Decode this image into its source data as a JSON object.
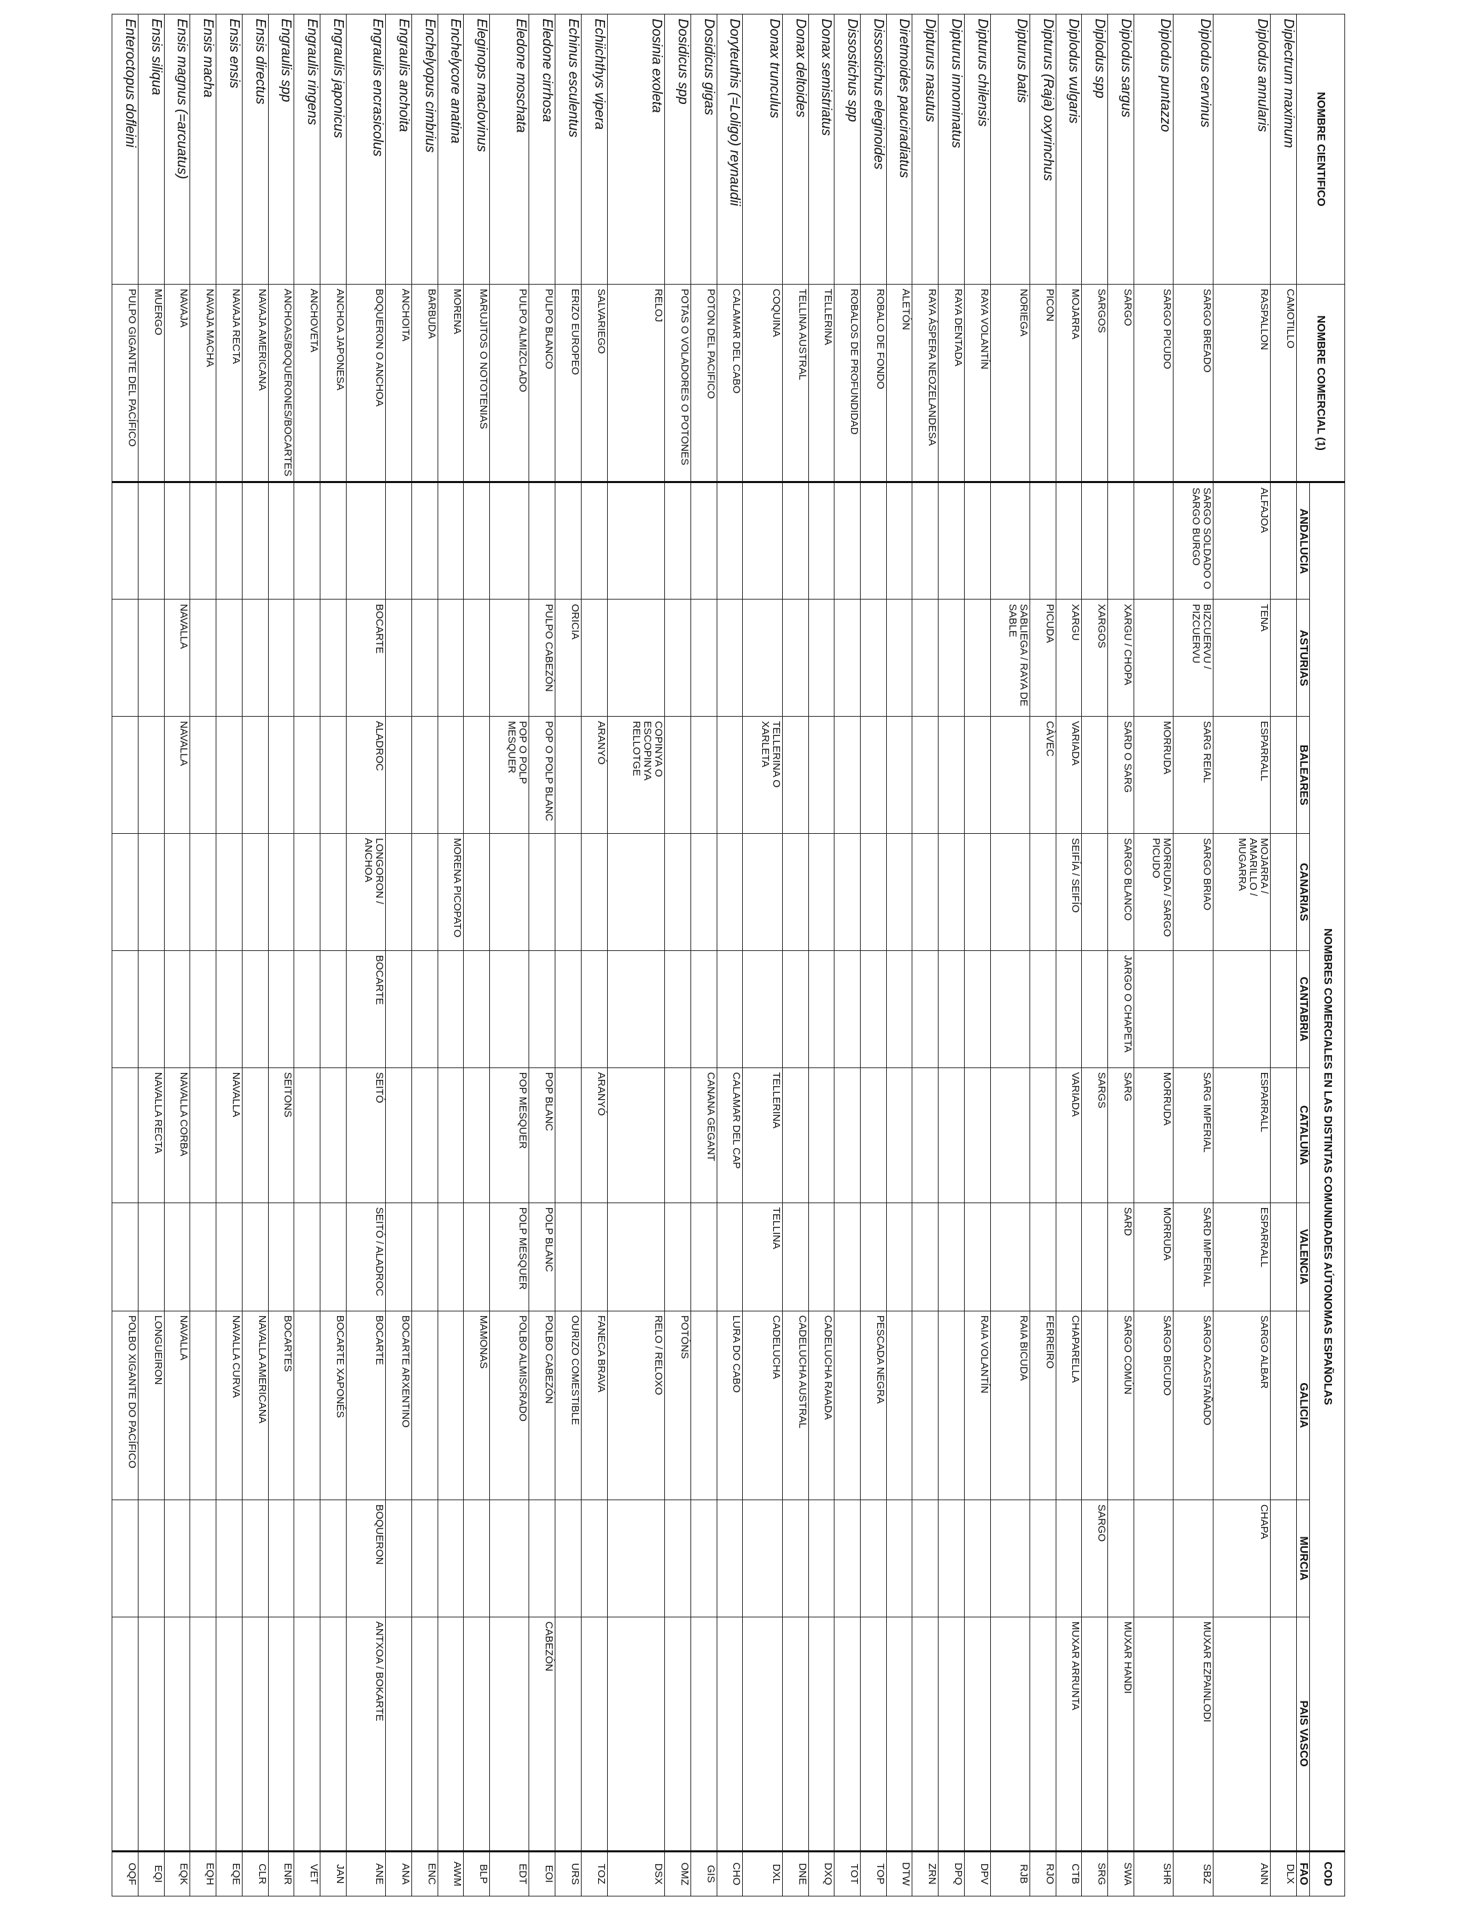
{
  "header": {
    "title": "NOMBRES COMERCIALES EN LAS DISTINTAS COMUNIDADES AÚTONOMAS ESPAÑOLAS",
    "cod": "COD",
    "columns": [
      "NOMBRE CIENTIFICO",
      "NOMBRE COMERCIAL (1)",
      "ANDALUCIA",
      "ASTURIAS",
      "BALEARES",
      "CANARIAS",
      "CANTABRIA",
      "CATALUÑA",
      "VALENCIA",
      "GALICIA",
      "MURCIA",
      "PAIS VASCO",
      "FAO"
    ]
  },
  "rows": [
    {
      "sci": "Diplectrum maximum",
      "com": "CAMOTILLO",
      "and": "",
      "ast": "",
      "bal": "",
      "can": "",
      "cnt": "",
      "cat": "",
      "val": "",
      "gal": "",
      "mur": "",
      "pv": "",
      "fao": "DLX"
    },
    {
      "sci": "Diplodus annularis",
      "com": "RASPALLON",
      "and": "ALFAJOA",
      "ast": "TENA",
      "bal": "ESPARRALL",
      "can": "MOJARRA / AMARILLO / MUGARRA",
      "cnt": "",
      "cat": "ESPARRALL",
      "val": "ESPARRALL",
      "gal": "SARGO ALBAR",
      "mur": "CHAPA",
      "pv": "",
      "fao": "ANN"
    },
    {
      "sci": "Diplodus cervinus",
      "com": "SARGO BREADO",
      "and": "SARGO SOLDADO O SARGO BURGO",
      "ast": "BIZCUERVU / PIZCUERVU",
      "bal": "SARG REIAL",
      "can": "SARGO BRIAO",
      "cnt": "",
      "cat": "SARG IMPERIAL",
      "val": "SARD IMPERIAL",
      "gal": "SARGO ACASTAÑADO",
      "mur": "",
      "pv": "MUXAR EZPAINLODI",
      "fao": "SBZ"
    },
    {
      "sci": "Diplodus puntazzo",
      "com": "SARGO PICUDO",
      "and": "",
      "ast": "",
      "bal": "MORRUDA",
      "can": "MORRUDA / SARGO PICUDO",
      "cnt": "",
      "cat": "MORRUDA",
      "val": "MORRUDA",
      "gal": "SARGO BICUDO",
      "mur": "",
      "pv": "",
      "fao": "SHR"
    },
    {
      "sci": "Diplodus sargus",
      "com": "SARGO",
      "and": "",
      "ast": "XARGU / CHOPA",
      "bal": "SARD O SARG",
      "can": "SARGO BLANCO",
      "cnt": "JARGO O CHAPETA",
      "cat": "SARG",
      "val": "SARD",
      "gal": "SARGO COMÚN",
      "mur": "",
      "pv": "MUXAR HANDI",
      "fao": "SWA"
    },
    {
      "sci": "Diplodus spp",
      "com": "SARGOS",
      "and": "",
      "ast": "XARGOS",
      "bal": "",
      "can": "",
      "cnt": "",
      "cat": "SARGS",
      "val": "",
      "gal": "",
      "mur": "SARGO",
      "pv": "",
      "fao": "SRG"
    },
    {
      "sci": "Diplodus vulgaris",
      "com": "MOJARRA",
      "and": "",
      "ast": "XARGU",
      "bal": "VARIADA",
      "can": "SEIFÍA / SEIFÍO",
      "cnt": "",
      "cat": "VARIADA",
      "val": "",
      "gal": "CHAPARELLA",
      "mur": "",
      "pv": "MUXAR ARRUNTA",
      "fao": "CTB"
    },
    {
      "sci": "Dipturus (Raja) oxyrinchus",
      "com": "PICON",
      "and": "",
      "ast": "PICUDA",
      "bal": "CÀVEC",
      "can": "",
      "cnt": "",
      "cat": "",
      "val": "",
      "gal": "FERREIRO",
      "mur": "",
      "pv": "",
      "fao": "RJO"
    },
    {
      "sci": "Dipturus batis",
      "com": "NORIEGA",
      "and": "",
      "ast": "SABLIEGA / RAYA DE SABLE",
      "bal": "",
      "can": "",
      "cnt": "",
      "cat": "",
      "val": "",
      "gal": "RAIA BICUDA",
      "mur": "",
      "pv": "",
      "fao": "RJB"
    },
    {
      "sci": "Dipturus chilensis",
      "com": "RAYA VOLANTÍN",
      "and": "",
      "ast": "",
      "bal": "",
      "can": "",
      "cnt": "",
      "cat": "",
      "val": "",
      "gal": "RAIA VOLANTÍN",
      "mur": "",
      "pv": "",
      "fao": "DPV"
    },
    {
      "sci": "Dipturus innominatus",
      "com": "RAYA DENTADA",
      "and": "",
      "ast": "",
      "bal": "",
      "can": "",
      "cnt": "",
      "cat": "",
      "val": "",
      "gal": "",
      "mur": "",
      "pv": "",
      "fao": "DPQ"
    },
    {
      "sci": "Dipturus nasutus",
      "com": "RAYA ÁSPERA NEOZELANDESA",
      "and": "",
      "ast": "",
      "bal": "",
      "can": "",
      "cnt": "",
      "cat": "",
      "val": "",
      "gal": "",
      "mur": "",
      "pv": "",
      "fao": "ZRN"
    },
    {
      "sci": "Diretmoides pauciradiatus",
      "com": "ALETÓN",
      "and": "",
      "ast": "",
      "bal": "",
      "can": "",
      "cnt": "",
      "cat": "",
      "val": "",
      "gal": "",
      "mur": "",
      "pv": "",
      "fao": "DTW"
    },
    {
      "sci": "Dissostichus eleginoides",
      "com": "ROBALO DE FONDO",
      "and": "",
      "ast": "",
      "bal": "",
      "can": "",
      "cnt": "",
      "cat": "",
      "val": "",
      "gal": "PESCADA NEGRA",
      "mur": "",
      "pv": "",
      "fao": "TOP"
    },
    {
      "sci": "Dissostichus spp",
      "com": "ROBALOS DE PROFUNDIDAD",
      "and": "",
      "ast": "",
      "bal": "",
      "can": "",
      "cnt": "",
      "cat": "",
      "val": "",
      "gal": "",
      "mur": "",
      "pv": "",
      "fao": "TOT"
    },
    {
      "sci": "Donax semistriatus",
      "com": "TELLERINA",
      "and": "",
      "ast": "",
      "bal": "",
      "can": "",
      "cnt": "",
      "cat": "",
      "val": "",
      "gal": "CADELUCHA RAIADA",
      "mur": "",
      "pv": "",
      "fao": "DXQ"
    },
    {
      "sci": "Donax deltoides",
      "com": "TELLINA AUSTRAL",
      "and": "",
      "ast": "",
      "bal": "",
      "can": "",
      "cnt": "",
      "cat": "",
      "val": "",
      "gal": "CADELUCHA AUSTRAL",
      "mur": "",
      "pv": "",
      "fao": "DNE"
    },
    {
      "sci": "Donax trunculus",
      "com": "COQUINA",
      "and": "",
      "ast": "",
      "bal": "TELLERINA O XARLETA",
      "can": "",
      "cnt": "",
      "cat": "TELLERINA",
      "val": "TELLINA",
      "gal": "CADELUCHA",
      "mur": "",
      "pv": "",
      "fao": "DXL"
    },
    {
      "sci": "Doryteuthis (=Loligo) reynaudii",
      "com": "CALAMAR DEL CABO",
      "and": "",
      "ast": "",
      "bal": "",
      "can": "",
      "cnt": "",
      "cat": "CALAMAR DEL CAP",
      "val": "",
      "gal": "LURA DO CABO",
      "mur": "",
      "pv": "",
      "fao": "CHO"
    },
    {
      "sci": "Dosidicus gigas",
      "com": "POTON DEL PACIFICO",
      "and": "",
      "ast": "",
      "bal": "",
      "can": "",
      "cnt": "",
      "cat": "CANANA GEGANT",
      "val": "",
      "gal": "",
      "mur": "",
      "pv": "",
      "fao": "GIS"
    },
    {
      "sci": "Dosidicus spp",
      "com": "POTAS O VOLADORES O POTONES",
      "and": "",
      "ast": "",
      "bal": "",
      "can": "",
      "cnt": "",
      "cat": "",
      "val": "",
      "gal": "POTÓNS",
      "mur": "",
      "pv": "",
      "fao": "OMZ"
    },
    {
      "sci": "Dosinia exoleta",
      "com": "RELOJ",
      "and": "",
      "ast": "",
      "bal": "COPINYA O ESCOPINYA RELLOTGE",
      "can": "",
      "cnt": "",
      "cat": "",
      "val": "",
      "gal": "RELO / RELOXO",
      "mur": "",
      "pv": "",
      "fao": "DSX"
    },
    {
      "sci": "Echiichthys vipera",
      "com": "SALVARIEGO",
      "and": "",
      "ast": "",
      "bal": "ARANYÓ",
      "can": "",
      "cnt": "",
      "cat": "ARANYÓ",
      "val": "",
      "gal": "FANECA BRAVA",
      "mur": "",
      "pv": "",
      "fao": "TOZ"
    },
    {
      "sci": "Echinus esculentus",
      "com": "ERIZO EUROPEO",
      "and": "",
      "ast": "ORICIA",
      "bal": "",
      "can": "",
      "cnt": "",
      "cat": "",
      "val": "",
      "gal": "OURIZO COMESTIBLE",
      "mur": "",
      "pv": "",
      "fao": "URS"
    },
    {
      "sci": "Eledone cirrhosa",
      "com": "PULPO BLANCO",
      "and": "",
      "ast": "PULPO CABEZÓN",
      "bal": "POP O POLP BLANC",
      "can": "",
      "cnt": "",
      "cat": "POP BLANC",
      "val": "POLP BLANC",
      "gal": "POLBO CABEZÓN",
      "mur": "",
      "pv": "CABEZÓN",
      "fao": "EOI"
    },
    {
      "sci": "Eledone moschata",
      "com": "PULPO ALMIZCLADO",
      "and": "",
      "ast": "",
      "bal": "POP O POLP MESQUER",
      "can": "",
      "cnt": "",
      "cat": "POP MESQUER",
      "val": "POLP MESQUER",
      "gal": "POLBO ALMISCRADO",
      "mur": "",
      "pv": "",
      "fao": "EDT"
    },
    {
      "sci": "Eleginops maclovinus",
      "com": "MARUJITOS O NOTOTENIAS",
      "and": "",
      "ast": "",
      "bal": "",
      "can": "",
      "cnt": "",
      "cat": "",
      "val": "",
      "gal": "MAMONAS",
      "mur": "",
      "pv": "",
      "fao": "BLP"
    },
    {
      "sci": "Enchelycore anatina",
      "com": "MORENA",
      "and": "",
      "ast": "",
      "bal": "",
      "can": "MORENA PICOPATO",
      "cnt": "",
      "cat": "",
      "val": "",
      "gal": "",
      "mur": "",
      "pv": "",
      "fao": "AWM"
    },
    {
      "sci": "Enchelyopus cimbrius",
      "com": "BARBUDA",
      "and": "",
      "ast": "",
      "bal": "",
      "can": "",
      "cnt": "",
      "cat": "",
      "val": "",
      "gal": "",
      "mur": "",
      "pv": "",
      "fao": "ENC"
    },
    {
      "sci": "Engraulis anchoita",
      "com": "ANCHOITA",
      "and": "",
      "ast": "",
      "bal": "",
      "can": "",
      "cnt": "",
      "cat": "",
      "val": "",
      "gal": "BOCARTE ARXENTINO",
      "mur": "",
      "pv": "",
      "fao": "ANA"
    },
    {
      "sci": "Engraulis encrasicolus",
      "com": "BOQUERON O ANCHOA",
      "and": "",
      "ast": "BOCARTE",
      "bal": "ALADROC",
      "can": "LONGORON / ANCHOA",
      "cnt": "BOCARTE",
      "cat": "SEITÓ",
      "val": "SEITÓ / ALADROC",
      "gal": "BOCARTE",
      "mur": "BOQUERON",
      "pv": "ANTXOA / BOKARTE",
      "fao": "ANE"
    },
    {
      "sci": "Engraulis japonicus",
      "com": "ANCHOA JAPONESA",
      "and": "",
      "ast": "",
      "bal": "",
      "can": "",
      "cnt": "",
      "cat": "",
      "val": "",
      "gal": "BOCARTE XAPONÉS",
      "mur": "",
      "pv": "",
      "fao": "JAN"
    },
    {
      "sci": "Engraulis ringens",
      "com": "ANCHOVETA",
      "and": "",
      "ast": "",
      "bal": "",
      "can": "",
      "cnt": "",
      "cat": "",
      "val": "",
      "gal": "",
      "mur": "",
      "pv": "",
      "fao": "VET"
    },
    {
      "sci": "Engraulis spp",
      "com": "ANCHOAS/BOQUERONES/BOCARTES",
      "and": "",
      "ast": "",
      "bal": "",
      "can": "",
      "cnt": "",
      "cat": "SEITONS",
      "val": "",
      "gal": "BOCARTES",
      "mur": "",
      "pv": "",
      "fao": "ENR"
    },
    {
      "sci": "Ensis directus",
      "com": "NAVAJA AMERICANA",
      "and": "",
      "ast": "",
      "bal": "",
      "can": "",
      "cnt": "",
      "cat": "",
      "val": "",
      "gal": "NAVALLA AMERICANA",
      "mur": "",
      "pv": "",
      "fao": "CLR"
    },
    {
      "sci": "Ensis ensis",
      "com": "NAVAJA RECTA",
      "and": "",
      "ast": "",
      "bal": "",
      "can": "",
      "cnt": "",
      "cat": "NAVALLA",
      "val": "",
      "gal": "NAVALLA CURVA",
      "mur": "",
      "pv": "",
      "fao": "EQE"
    },
    {
      "sci": "Ensis macha",
      "com": "NAVAJA MACHA",
      "and": "",
      "ast": "",
      "bal": "",
      "can": "",
      "cnt": "",
      "cat": "",
      "val": "",
      "gal": "",
      "mur": "",
      "pv": "",
      "fao": "EQH"
    },
    {
      "sci": "Ensis magnus (=arcuatus)",
      "com": "NAVAJA",
      "and": "",
      "ast": "NAVALLA",
      "bal": "NAVALLA",
      "can": "",
      "cnt": "",
      "cat": "NAVALLA CORBA",
      "val": "",
      "gal": "NAVALLA",
      "mur": "",
      "pv": "",
      "fao": "EQK"
    },
    {
      "sci": "Ensis siliqua",
      "com": "MUERGO",
      "and": "",
      "ast": "",
      "bal": "",
      "can": "",
      "cnt": "",
      "cat": "NAVALLA RECTA",
      "val": "",
      "gal": "LONGUEIRON",
      "mur": "",
      "pv": "",
      "fao": "EQI"
    },
    {
      "sci": "Enteroctopus dofleini",
      "com": "PULPO GIGANTE DEL PACÍFICO",
      "and": "",
      "ast": "",
      "bal": "",
      "can": "",
      "cnt": "",
      "cat": "",
      "val": "",
      "gal": "POLBO XIGANTE DO PACÍFICO",
      "mur": "",
      "pv": "",
      "fao": "OQF"
    }
  ]
}
